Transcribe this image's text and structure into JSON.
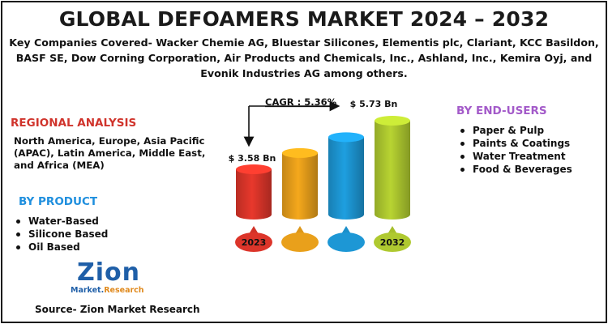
{
  "title": "GLOBAL DEFOAMERS MARKET 2024 – 2032",
  "subtitle": "Key Companies Covered- Wacker Chemie AG, Bluestar Silicones, Elementis plc, Clariant, KCC Basildon, BASF SE, Dow Corning Corporation, Air Products and Chemicals, Inc., Ashland, Inc., Kemira Oyj, and Evonik Industries AG among others.",
  "regional": {
    "heading": "REGIONAL ANALYSIS",
    "text": "North America, Europe, Asia Pacific (APAC), Latin America, Middle East, and Africa (MEA)"
  },
  "by_product": {
    "heading": "BY PRODUCT",
    "items": [
      "Water-Based",
      "Silicone Based",
      "Oil Based"
    ]
  },
  "by_end_users": {
    "heading": "BY END-USERS",
    "items": [
      "Paper & Pulp",
      "Paints & Coatings",
      "Water Treatment",
      "Food & Beverages"
    ]
  },
  "chart_data": {
    "type": "bar",
    "categories": [
      "2023",
      "",
      "",
      "2032"
    ],
    "values": [
      3.58,
      4.3,
      5.0,
      5.73
    ],
    "data_labels": [
      "$ 3.58 Bn",
      "",
      "",
      "$ 5.73 Bn"
    ],
    "cagr_label": "CAGR : 5.36%",
    "colors": [
      "#e8382c",
      "#f5a81c",
      "#1e9fe0",
      "#b8d432"
    ]
  },
  "logo": {
    "main": "Zion",
    "sub_left": "Market.",
    "sub_right": "Research"
  },
  "source": "Source- Zion Market Research"
}
